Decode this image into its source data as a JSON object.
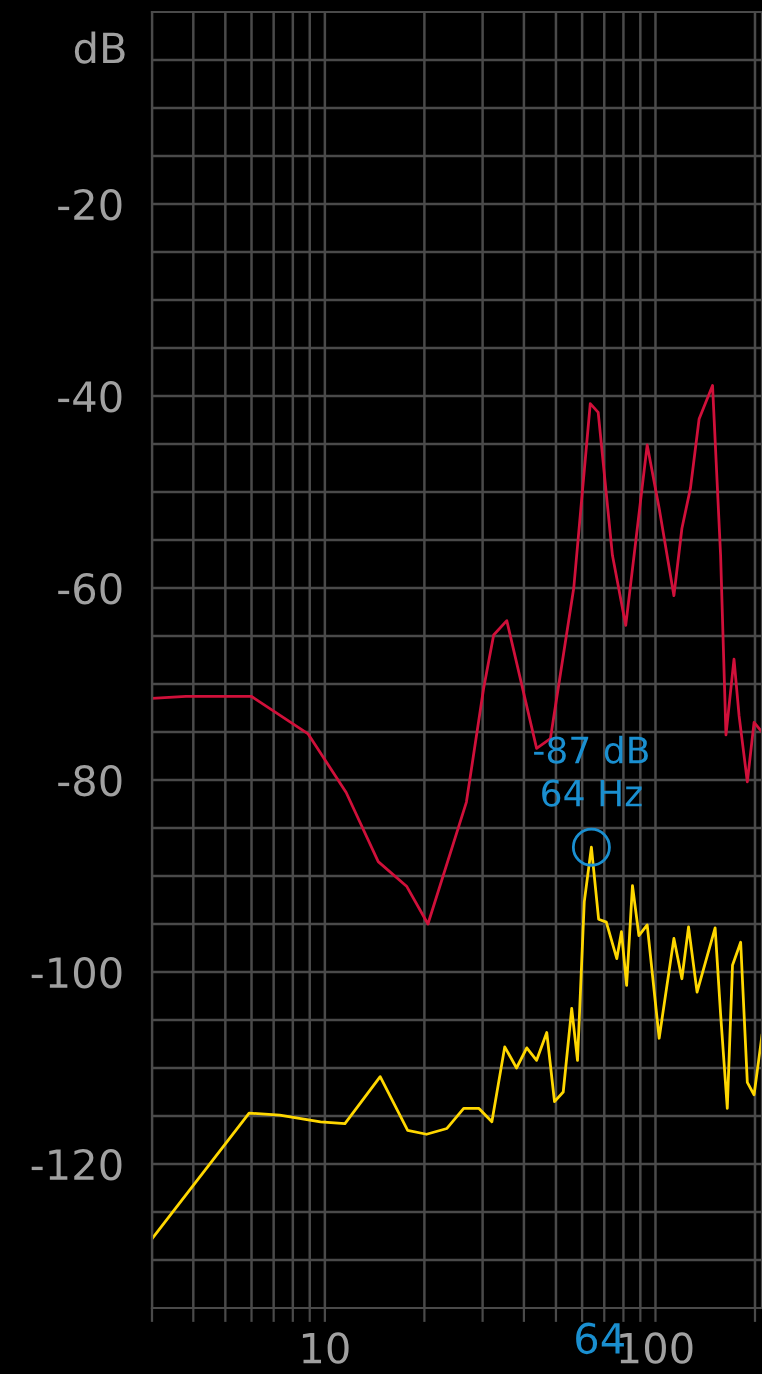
{
  "chart_data": {
    "type": "line",
    "ylabel": "dB",
    "log": "x",
    "grid": true,
    "marker": "none",
    "line_style": "solid",
    "xlim": [
      3,
      210
    ],
    "ylim": [
      -135,
      0
    ],
    "xticks": [
      {
        "value": 3,
        "label": null
      },
      {
        "value": 4,
        "label": null
      },
      {
        "value": 5,
        "label": null
      },
      {
        "value": 6,
        "label": null
      },
      {
        "value": 7,
        "label": null
      },
      {
        "value": 8,
        "label": null
      },
      {
        "value": 9,
        "label": null
      },
      10,
      {
        "value": 20,
        "label": null
      },
      {
        "value": 30,
        "label": null
      },
      {
        "value": 40,
        "label": null
      },
      {
        "value": 50,
        "label": null
      },
      {
        "value": 60,
        "label": null
      },
      {
        "value": 70,
        "label": null
      },
      {
        "value": 80,
        "label": null
      },
      {
        "value": 90,
        "label": null
      },
      100,
      {
        "value": 200,
        "label": null
      }
    ],
    "yticks": [
      {
        "value": -5,
        "label": null
      },
      {
        "value": -10,
        "label": null
      },
      {
        "value": -15,
        "label": null
      },
      -20,
      {
        "value": -25,
        "label": null
      },
      {
        "value": -30,
        "label": null
      },
      {
        "value": -35,
        "label": null
      },
      -40,
      {
        "value": -45,
        "label": null
      },
      {
        "value": -50,
        "label": null
      },
      {
        "value": -55,
        "label": null
      },
      -60,
      {
        "value": -65,
        "label": null
      },
      {
        "value": -70,
        "label": null
      },
      {
        "value": -75,
        "label": null
      },
      -80,
      {
        "value": -85,
        "label": null
      },
      {
        "value": -90,
        "label": null
      },
      {
        "value": -95,
        "label": null
      },
      -100,
      {
        "value": -105,
        "label": null
      },
      {
        "value": -110,
        "label": null
      },
      {
        "value": -115,
        "label": null
      },
      -120,
      {
        "value": -125,
        "label": null
      },
      {
        "value": -130,
        "label": null
      }
    ],
    "series": [
      {
        "color": "#d0103a",
        "x": [
          3,
          3.8,
          6.0,
          8.9,
          11.6,
          14.5,
          17.7,
          20.5,
          26.8,
          30.2,
          32.4,
          35.5,
          43.7,
          48.1,
          56.6,
          63.5,
          67.1,
          74.1,
          81.3,
          94.4,
          102.6,
          113.7,
          120.2,
          127.6,
          135.5,
          148.8,
          157.4,
          163.4,
          172.8,
          179,
          189.6,
          198.7,
          210
        ],
        "values": [
          -71.5,
          -71.3,
          -71.3,
          -75.2,
          -81.3,
          -88.5,
          -91.1,
          -95,
          -82.3,
          -70.5,
          -64.9,
          -63.4,
          -76.7,
          -75.7,
          -60,
          -40.8,
          -41.7,
          -56.6,
          -63.9,
          -45.1,
          -51.7,
          -60.8,
          -53.8,
          -49.6,
          -42.4,
          -38.9,
          -56.6,
          -75.3,
          -67.4,
          -73.3,
          -80.2,
          -74,
          -75
        ]
      },
      {
        "color": "#ffd700",
        "x": [
          3,
          5.9,
          7.3,
          9.7,
          11.5,
          14.7,
          17.8,
          20.3,
          23.4,
          26.3,
          29.2,
          32,
          35,
          38,
          40.8,
          43.7,
          46.9,
          49.5,
          52.6,
          55.8,
          58.1,
          60.9,
          64,
          67.3,
          71,
          76.4,
          78.9,
          81.8,
          85.2,
          89.1,
          94.4,
          102.6,
          113.7,
          120.2,
          125.9,
          133.6,
          151.5,
          157.4,
          164.9,
          171,
          181,
          189.6,
          198.7,
          210
        ],
        "values": [
          -127.8,
          -114.7,
          -114.9,
          -115.6,
          -115.8,
          -110.9,
          -116.5,
          -116.9,
          -116.3,
          -114.2,
          -114.2,
          -115.6,
          -107.8,
          -110,
          -107.9,
          -109.2,
          -106.3,
          -113.5,
          -112.5,
          -103.8,
          -109.2,
          -92.7,
          -87,
          -94.5,
          -94.8,
          -98.6,
          -95.8,
          -101.4,
          -91,
          -96.2,
          -95.1,
          -106.9,
          -96.5,
          -100.7,
          -95.3,
          -102.1,
          -95.4,
          -104.4,
          -114.2,
          -99.3,
          -96.9,
          -111.5,
          -112.8,
          -106.6
        ]
      }
    ],
    "annotations": [
      {
        "text": "-87 dB\n64 Hz",
        "x": 64,
        "y": -87
      },
      "64"
    ]
  }
}
